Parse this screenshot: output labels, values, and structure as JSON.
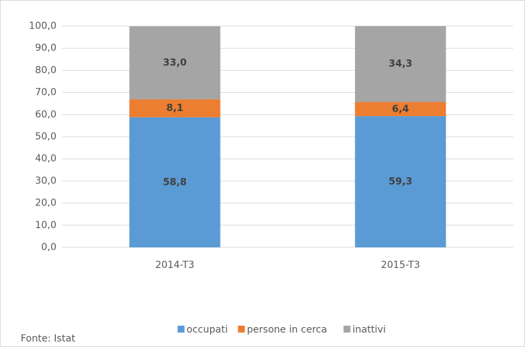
{
  "chart_data": {
    "type": "stacked_bar",
    "categories": [
      "2014-T3",
      "2015-T3"
    ],
    "series": [
      {
        "name": "occupati",
        "color": "#5b9bd5",
        "values": [
          58.8,
          59.3
        ],
        "value_labels": [
          "58,8",
          "59,3"
        ]
      },
      {
        "name": "persone in cerca",
        "color": "#ed7d31",
        "values": [
          8.1,
          6.4
        ],
        "value_labels": [
          "8,1",
          "6,4"
        ]
      },
      {
        "name": "inattivi",
        "color": "#a5a5a5",
        "values": [
          33.0,
          34.3
        ],
        "value_labels": [
          "33,0",
          "34,3"
        ]
      }
    ],
    "ylim": [
      0,
      100
    ],
    "yticks": [
      {
        "value": 0,
        "label": "0,0"
      },
      {
        "value": 10,
        "label": "10,0"
      },
      {
        "value": 20,
        "label": "20,0"
      },
      {
        "value": 30,
        "label": "30,0"
      },
      {
        "value": 40,
        "label": "40,0"
      },
      {
        "value": 50,
        "label": "50,0"
      },
      {
        "value": 60,
        "label": "60,0"
      },
      {
        "value": 70,
        "label": "70,0"
      },
      {
        "value": 80,
        "label": "80,0"
      },
      {
        "value": 90,
        "label": "90,0"
      },
      {
        "value": 100,
        "label": "100,0"
      }
    ],
    "grid": true,
    "legend": "bottom",
    "source": "Fonte: Istat"
  }
}
